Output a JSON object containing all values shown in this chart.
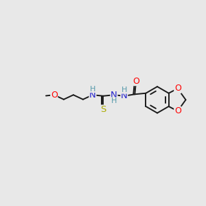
{
  "bg_color": "#e8e8e8",
  "bond_color": "#1a1a1a",
  "bond_width": 1.4,
  "atom_colors": {
    "O": "#ff0000",
    "N": "#2222cc",
    "S": "#aaaa00",
    "C": "#1a1a1a",
    "H": "#5599aa"
  },
  "xlim": [
    -0.3,
    9.2
  ],
  "ylim": [
    -2.5,
    2.5
  ],
  "figsize": [
    3.0,
    3.0
  ],
  "dpi": 100
}
